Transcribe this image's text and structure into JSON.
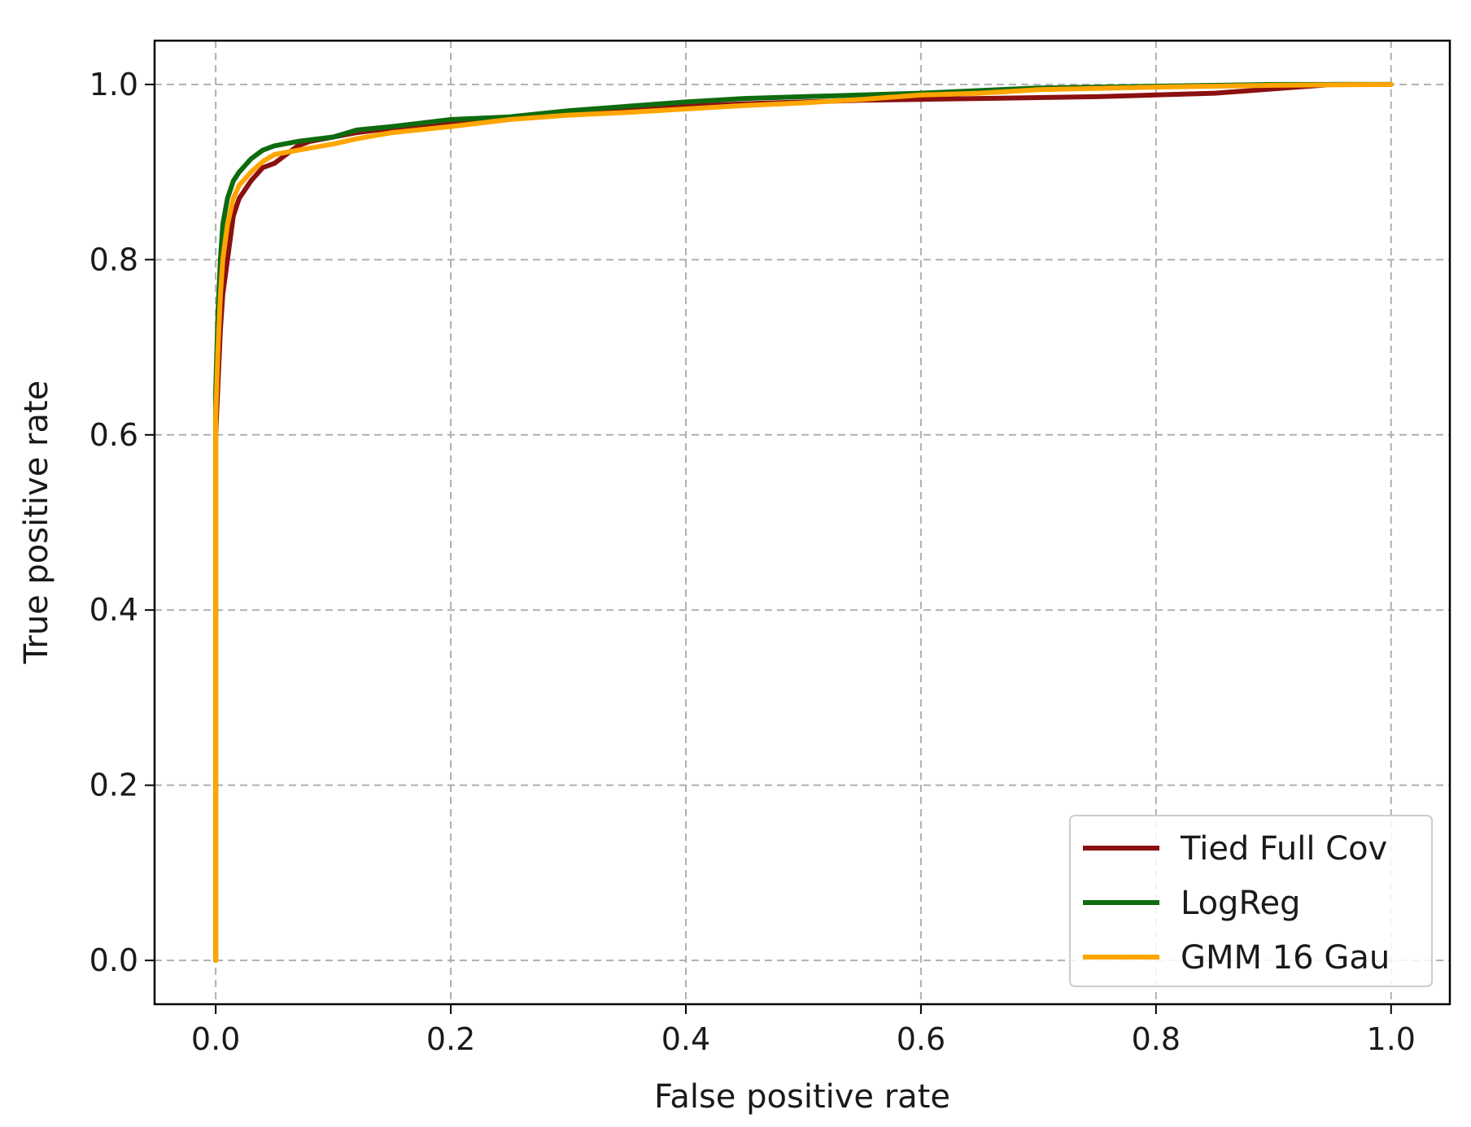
{
  "chart_data": {
    "type": "line",
    "title": "",
    "xlabel": "False positive rate",
    "ylabel": "True positive rate",
    "xlim": [
      -0.052,
      1.05
    ],
    "ylim": [
      -0.05,
      1.05
    ],
    "xticks": [
      0.0,
      0.2,
      0.4,
      0.6,
      0.8,
      1.0
    ],
    "yticks": [
      0.0,
      0.2,
      0.4,
      0.6,
      0.8,
      1.0
    ],
    "xtick_labels": [
      "0.0",
      "0.2",
      "0.4",
      "0.6",
      "0.8",
      "1.0"
    ],
    "ytick_labels": [
      "0.0",
      "0.2",
      "0.4",
      "0.6",
      "0.8",
      "1.0"
    ],
    "grid": true,
    "legend": "bottom-right",
    "series": [
      {
        "name": "Tied Full Cov",
        "color": "#8b1010",
        "x": [
          0.0,
          0.0,
          0.002,
          0.004,
          0.006,
          0.01,
          0.015,
          0.02,
          0.03,
          0.04,
          0.05,
          0.06,
          0.07,
          0.08,
          0.1,
          0.12,
          0.15,
          0.2,
          0.25,
          0.3,
          0.35,
          0.4,
          0.45,
          0.5,
          0.55,
          0.6,
          0.65,
          0.7,
          0.75,
          0.8,
          0.85,
          0.9,
          0.95,
          1.0
        ],
        "y": [
          0.0,
          0.6,
          0.66,
          0.72,
          0.76,
          0.8,
          0.85,
          0.87,
          0.89,
          0.905,
          0.91,
          0.92,
          0.93,
          0.935,
          0.94,
          0.945,
          0.95,
          0.955,
          0.962,
          0.968,
          0.972,
          0.975,
          0.978,
          0.98,
          0.982,
          0.983,
          0.984,
          0.985,
          0.986,
          0.988,
          0.99,
          0.995,
          1.0,
          1.0
        ]
      },
      {
        "name": "LogReg",
        "color": "#0e6b0e",
        "x": [
          0.0,
          0.0,
          0.002,
          0.004,
          0.006,
          0.01,
          0.015,
          0.02,
          0.03,
          0.04,
          0.05,
          0.07,
          0.1,
          0.12,
          0.15,
          0.2,
          0.25,
          0.3,
          0.35,
          0.4,
          0.45,
          0.5,
          0.55,
          0.6,
          0.65,
          0.7,
          0.8,
          0.9,
          1.0
        ],
        "y": [
          0.0,
          0.65,
          0.74,
          0.8,
          0.84,
          0.87,
          0.89,
          0.9,
          0.915,
          0.925,
          0.93,
          0.935,
          0.94,
          0.948,
          0.952,
          0.96,
          0.963,
          0.97,
          0.975,
          0.98,
          0.984,
          0.986,
          0.988,
          0.99,
          0.993,
          0.996,
          0.998,
          1.0,
          1.0
        ]
      },
      {
        "name": "GMM 16 Gau",
        "color": "#ffa500",
        "x": [
          0.0,
          0.0,
          0.002,
          0.004,
          0.006,
          0.01,
          0.015,
          0.02,
          0.03,
          0.04,
          0.05,
          0.07,
          0.1,
          0.12,
          0.15,
          0.2,
          0.25,
          0.3,
          0.35,
          0.4,
          0.45,
          0.5,
          0.55,
          0.6,
          0.65,
          0.7,
          0.8,
          0.9,
          1.0
        ],
        "y": [
          0.0,
          0.62,
          0.7,
          0.76,
          0.8,
          0.84,
          0.87,
          0.885,
          0.9,
          0.912,
          0.92,
          0.925,
          0.932,
          0.938,
          0.945,
          0.952,
          0.96,
          0.965,
          0.968,
          0.972,
          0.976,
          0.979,
          0.983,
          0.988,
          0.99,
          0.994,
          0.997,
          0.999,
          1.0
        ]
      }
    ]
  }
}
